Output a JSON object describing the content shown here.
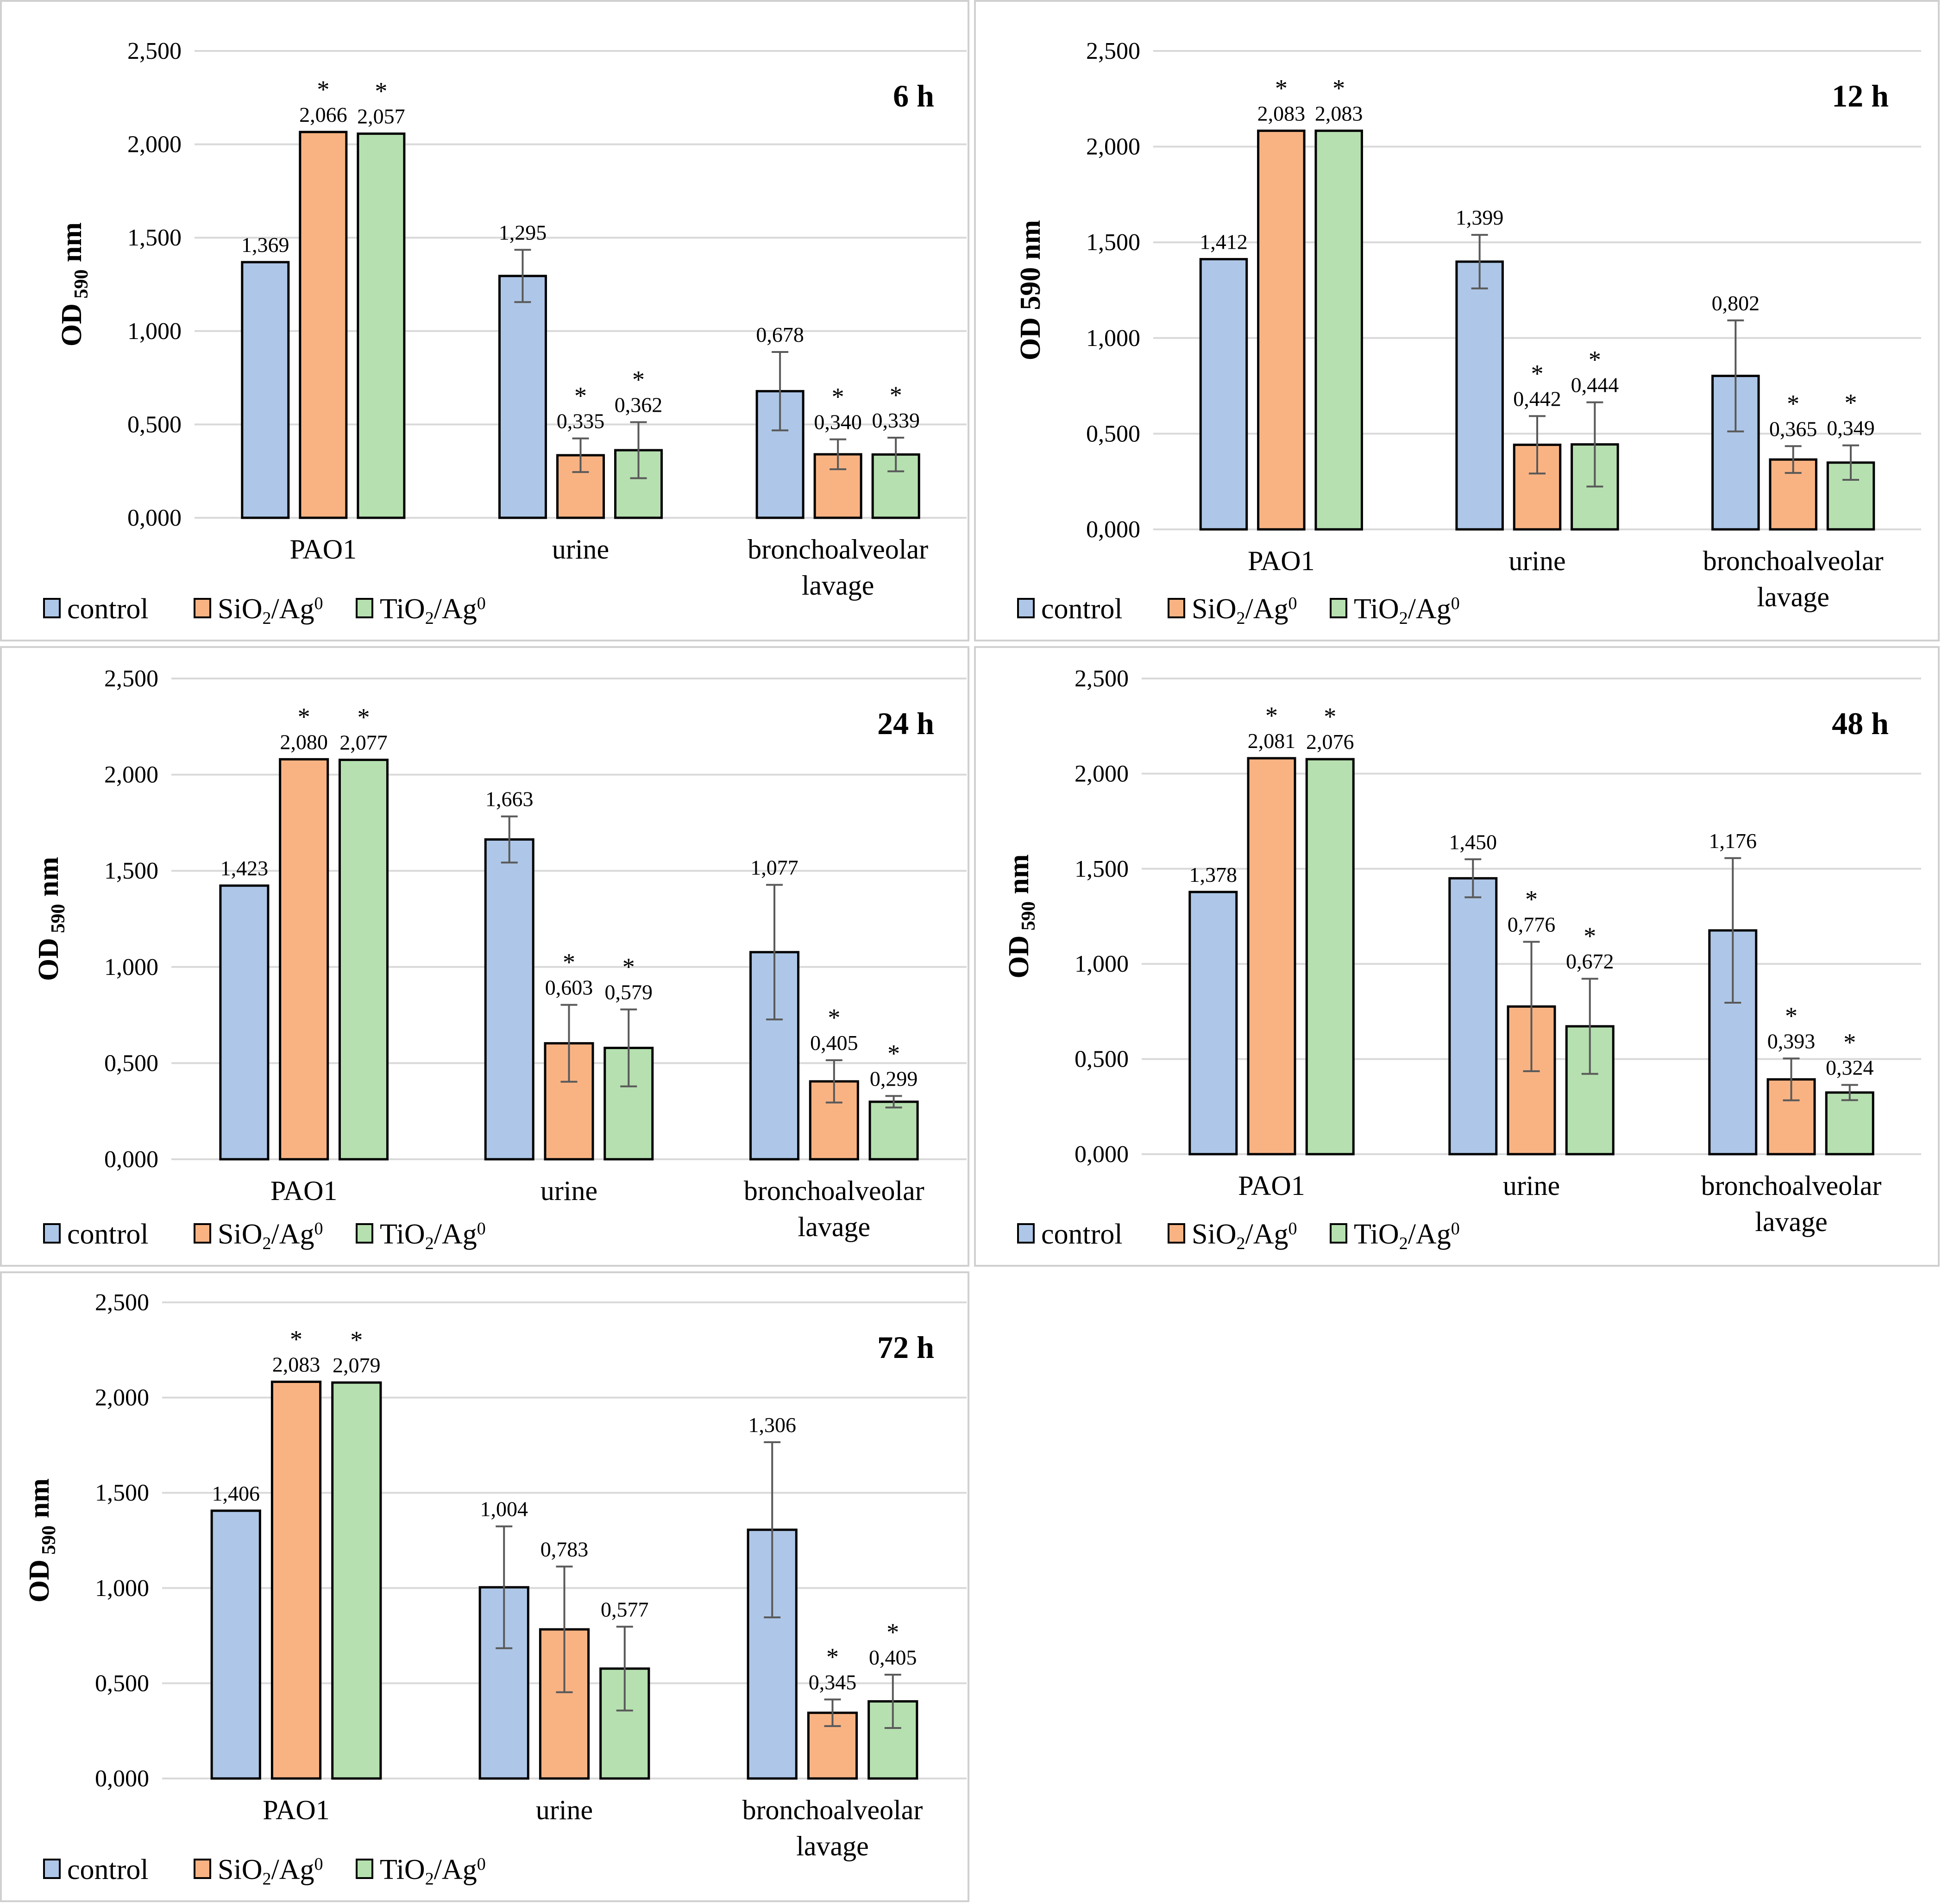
{
  "figure_title": "",
  "y_ticks": [
    "0,000",
    "0,500",
    "1,000",
    "1,500",
    "2,000",
    "2,500"
  ],
  "significance_marker": "*",
  "colors": {
    "control": "#aec7e8",
    "sio2": "#f9b383",
    "tio2": "#b6e0b0",
    "outline": "#000000",
    "grid": "#d9d9d9",
    "error_bar": "#595959",
    "panel_border": "#d0d0d0"
  },
  "chart_data": [
    {
      "type": "bar",
      "title": "6 h",
      "ylabel": "OD 590 nm",
      "ylabel_parts": [
        "OD",
        "590",
        "nm"
      ],
      "ylabel_subscript": true,
      "ylim": [
        0,
        2.5
      ],
      "categories": [
        "PAO1",
        "urine",
        "bronchoalveolar lavage"
      ],
      "category_lines": [
        [
          "PAO1"
        ],
        [
          "urine"
        ],
        [
          "bronchoalveolar",
          "lavage"
        ]
      ],
      "series": [
        {
          "name": "control",
          "legend_parts": [
            "control"
          ],
          "color_key": "control",
          "values": [
            1.369,
            1.295,
            0.678
          ],
          "labels": [
            "1,369",
            "1,295",
            "0,678"
          ],
          "errors": [
            0,
            0.14,
            0.21
          ],
          "significant": [
            false,
            false,
            false
          ]
        },
        {
          "name": "SiO2/Ag0",
          "legend_parts": [
            "SiO",
            "2",
            "/Ag",
            "0"
          ],
          "color_key": "sio2",
          "values": [
            2.066,
            0.335,
            0.34
          ],
          "labels": [
            "2,066",
            "0,335",
            "0,340"
          ],
          "errors": [
            0,
            0.09,
            0.08
          ],
          "significant": [
            true,
            true,
            true
          ]
        },
        {
          "name": "TiO2/Ag0",
          "legend_parts": [
            "TiO",
            "2",
            "/Ag",
            "0"
          ],
          "color_key": "tio2",
          "values": [
            2.057,
            0.362,
            0.339
          ],
          "labels": [
            "2,057",
            "0,362",
            "0,339"
          ],
          "errors": [
            0,
            0.15,
            0.09
          ],
          "significant": [
            true,
            true,
            true
          ]
        }
      ]
    },
    {
      "type": "bar",
      "title": "12 h",
      "ylabel": "OD 590 nm",
      "ylabel_parts": [
        "OD",
        "590",
        "nm"
      ],
      "ylabel_subscript": false,
      "ylim": [
        0,
        2.5
      ],
      "categories": [
        "PAO1",
        "urine",
        "bronchoalveolar lavage"
      ],
      "category_lines": [
        [
          "PAO1"
        ],
        [
          "urine"
        ],
        [
          "bronchoalveolar",
          "lavage"
        ]
      ],
      "series": [
        {
          "name": "control",
          "legend_parts": [
            "control"
          ],
          "color_key": "control",
          "values": [
            1.412,
            1.399,
            0.802
          ],
          "labels": [
            "1,412",
            "1,399",
            "0,802"
          ],
          "errors": [
            0,
            0.14,
            0.29
          ],
          "significant": [
            false,
            false,
            false
          ]
        },
        {
          "name": "SiO2/Ag0",
          "legend_parts": [
            "SiO",
            "2",
            "/Ag",
            "0"
          ],
          "color_key": "sio2",
          "values": [
            2.083,
            0.442,
            0.365
          ],
          "labels": [
            "2,083",
            "0,442",
            "0,365"
          ],
          "errors": [
            0,
            0.15,
            0.07
          ],
          "significant": [
            true,
            true,
            true
          ]
        },
        {
          "name": "TiO2/Ag0",
          "legend_parts": [
            "TiO",
            "2",
            "/Ag",
            "0"
          ],
          "color_key": "tio2",
          "values": [
            2.083,
            0.444,
            0.349
          ],
          "labels": [
            "2,083",
            "0,444",
            "0,349"
          ],
          "errors": [
            0,
            0.22,
            0.09
          ],
          "significant": [
            true,
            true,
            true
          ]
        }
      ]
    },
    {
      "type": "bar",
      "title": "24 h",
      "ylabel": "OD 590 nm",
      "ylabel_parts": [
        "OD",
        "590",
        "nm"
      ],
      "ylabel_subscript": true,
      "ylim": [
        0,
        2.5
      ],
      "categories": [
        "PAO1",
        "urine",
        "bronchoalveolar lavage"
      ],
      "category_lines": [
        [
          "PAO1"
        ],
        [
          "urine"
        ],
        [
          "bronchoalveolar",
          "lavage"
        ]
      ],
      "series": [
        {
          "name": "control",
          "legend_parts": [
            "control"
          ],
          "color_key": "control",
          "values": [
            1.423,
            1.663,
            1.077
          ],
          "labels": [
            "1,423",
            "1,663",
            "1,077"
          ],
          "errors": [
            0,
            0.12,
            0.35
          ],
          "significant": [
            false,
            false,
            false
          ]
        },
        {
          "name": "SiO2/Ag0",
          "legend_parts": [
            "SiO",
            "2",
            "/Ag",
            "0"
          ],
          "color_key": "sio2",
          "values": [
            2.08,
            0.603,
            0.405
          ],
          "labels": [
            "2,080",
            "0,603",
            "0,405"
          ],
          "errors": [
            0,
            0.2,
            0.11
          ],
          "significant": [
            true,
            true,
            true
          ]
        },
        {
          "name": "TiO2/Ag0",
          "legend_parts": [
            "TiO",
            "2",
            "/Ag",
            "0"
          ],
          "color_key": "tio2",
          "values": [
            2.077,
            0.579,
            0.299
          ],
          "labels": [
            "2,077",
            "0,579",
            "0,299"
          ],
          "errors": [
            0,
            0.2,
            0.03
          ],
          "significant": [
            true,
            true,
            true
          ]
        }
      ]
    },
    {
      "type": "bar",
      "title": "48 h",
      "ylabel": "OD 590 nm",
      "ylabel_parts": [
        "OD",
        "590",
        "nm"
      ],
      "ylabel_subscript": true,
      "ylim": [
        0,
        2.5
      ],
      "categories": [
        "PAO1",
        "urine",
        "bronchoalveolar lavage"
      ],
      "category_lines": [
        [
          "PAO1"
        ],
        [
          "urine"
        ],
        [
          "bronchoalveolar",
          "lavage"
        ]
      ],
      "series": [
        {
          "name": "control",
          "legend_parts": [
            "control"
          ],
          "color_key": "control",
          "values": [
            1.378,
            1.45,
            1.176
          ],
          "labels": [
            "1,378",
            "1,450",
            "1,176"
          ],
          "errors": [
            0,
            0.1,
            0.38
          ],
          "significant": [
            false,
            false,
            false
          ]
        },
        {
          "name": "SiO2/Ag0",
          "legend_parts": [
            "SiO",
            "2",
            "/Ag",
            "0"
          ],
          "color_key": "sio2",
          "values": [
            2.081,
            0.776,
            0.393
          ],
          "labels": [
            "2,081",
            "0,776",
            "0,393"
          ],
          "errors": [
            0,
            0.34,
            0.11
          ],
          "significant": [
            true,
            true,
            true
          ]
        },
        {
          "name": "TiO2/Ag0",
          "legend_parts": [
            "TiO",
            "2",
            "/Ag",
            "0"
          ],
          "color_key": "tio2",
          "values": [
            2.076,
            0.672,
            0.324
          ],
          "labels": [
            "2,076",
            "0,672",
            "0,324"
          ],
          "errors": [
            0,
            0.25,
            0.04
          ],
          "significant": [
            true,
            true,
            true
          ]
        }
      ]
    },
    {
      "type": "bar",
      "title": "72 h",
      "ylabel": "OD 590 nm",
      "ylabel_parts": [
        "OD",
        "590",
        "nm"
      ],
      "ylabel_subscript": true,
      "ylim": [
        0,
        2.5
      ],
      "categories": [
        "PAO1",
        "urine",
        "bronchoalveolar lavage"
      ],
      "category_lines": [
        [
          "PAO1"
        ],
        [
          "urine"
        ],
        [
          "bronchoalveolar",
          "lavage"
        ]
      ],
      "series": [
        {
          "name": "control",
          "legend_parts": [
            "control"
          ],
          "color_key": "control",
          "values": [
            1.406,
            1.004,
            1.306
          ],
          "labels": [
            "1,406",
            "1,004",
            "1,306"
          ],
          "errors": [
            0,
            0.32,
            0.46
          ],
          "significant": [
            false,
            false,
            false
          ]
        },
        {
          "name": "SiO2/Ag0",
          "legend_parts": [
            "SiO",
            "2",
            "/Ag",
            "0"
          ],
          "color_key": "sio2",
          "values": [
            2.083,
            0.783,
            0.345
          ],
          "labels": [
            "2,083",
            "0,783",
            "0,345"
          ],
          "errors": [
            0,
            0.33,
            0.07
          ],
          "significant": [
            true,
            false,
            true
          ]
        },
        {
          "name": "TiO2/Ag0",
          "legend_parts": [
            "TiO",
            "2",
            "/Ag",
            "0"
          ],
          "color_key": "tio2",
          "values": [
            2.079,
            0.577,
            0.405
          ],
          "labels": [
            "2,079",
            "0,577",
            "0,405"
          ],
          "errors": [
            0,
            0.22,
            0.14
          ],
          "significant": [
            true,
            false,
            true
          ]
        }
      ]
    }
  ]
}
